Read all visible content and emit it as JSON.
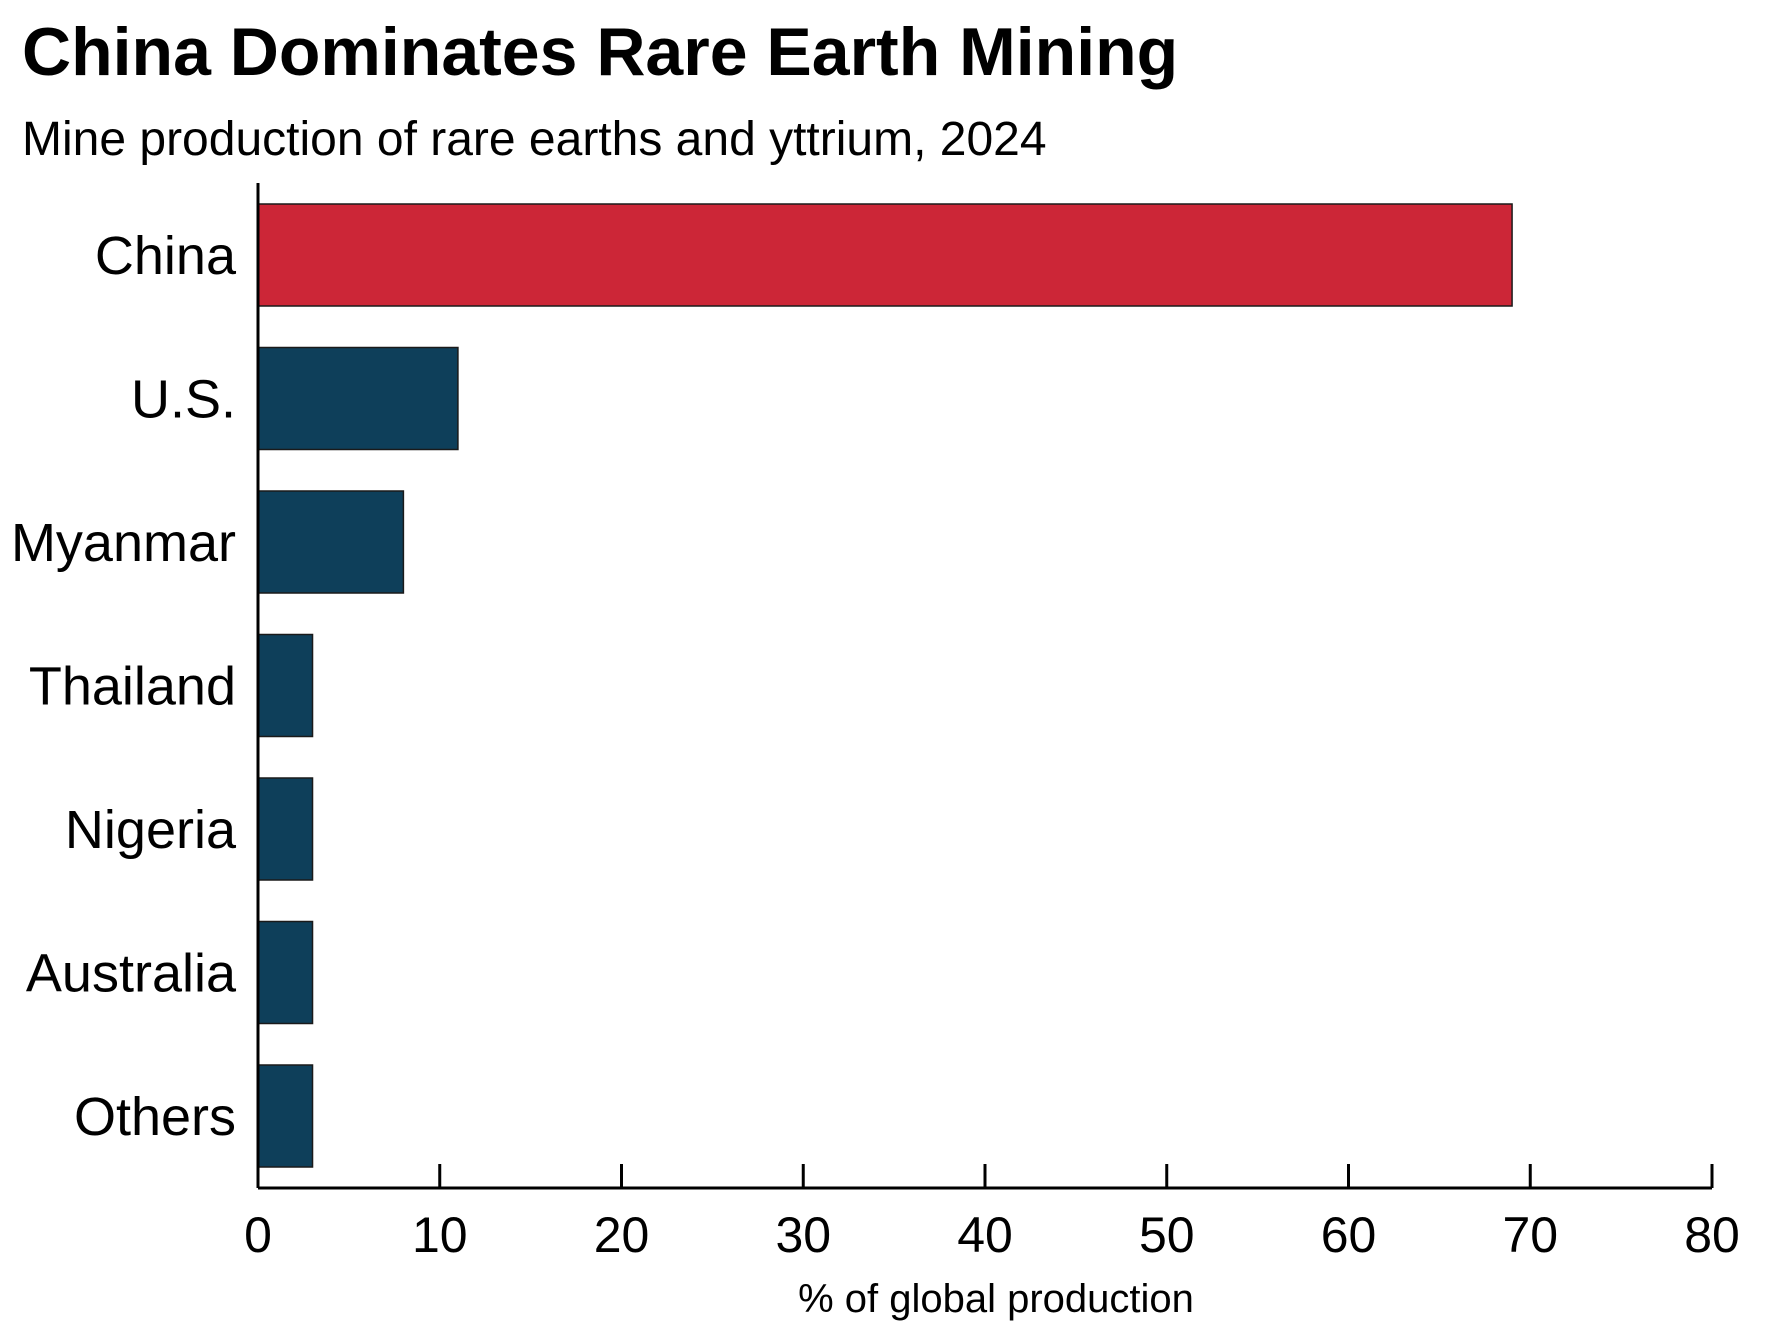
{
  "chart_data": {
    "type": "bar",
    "orientation": "horizontal",
    "title": "China Dominates Rare Earth Mining",
    "subtitle": "Mine production of rare earths and yttrium, 2024",
    "xlabel": "% of global production",
    "ylabel": "",
    "categories": [
      "China",
      "U.S.",
      "Myanmar",
      "Thailand",
      "Nigeria",
      "Australia",
      "Others"
    ],
    "values": [
      69,
      11,
      8,
      3,
      3,
      3,
      3
    ],
    "xlim": [
      0,
      80
    ],
    "xticks": [
      "0",
      "10",
      "20",
      "30",
      "40",
      "50",
      "60",
      "70",
      "80"
    ],
    "grid": false,
    "legend": "none",
    "colors": {
      "highlight": "#cc2637",
      "default": "#0e3f5a"
    },
    "highlight_category": "China"
  }
}
